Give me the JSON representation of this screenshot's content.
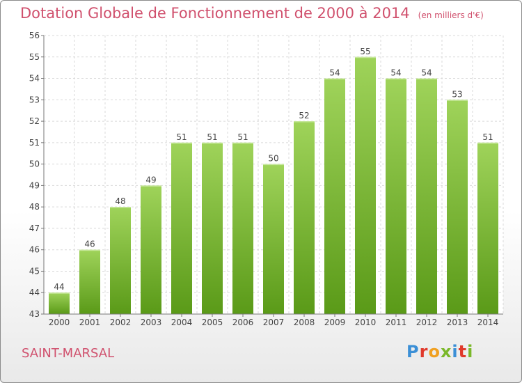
{
  "title": "Dotation Globale de Fonctionnement de 2000 à 2014",
  "unit": "(en milliers d'€)",
  "commune": "SAINT-MARSAL",
  "brand": {
    "letters": [
      "P",
      "r",
      "o",
      "x",
      "i",
      "t",
      "i"
    ],
    "colors": [
      "#3b8fd6",
      "#e0392b",
      "#f0a020",
      "#7ab829",
      "#3b8fd6",
      "#e0392b",
      "#7ab829"
    ]
  },
  "colors": {
    "title": "#d0506d",
    "bar_top": "#9fd35a",
    "bar_bottom": "#5a9a18",
    "grid": "#d9d9d9"
  },
  "chart_data": {
    "type": "bar",
    "title": "Dotation Globale de Fonctionnement de 2000 à 2014",
    "subtitle": "(en milliers d'€)",
    "categories": [
      "2000",
      "2001",
      "2002",
      "2003",
      "2004",
      "2005",
      "2006",
      "2007",
      "2008",
      "2009",
      "2010",
      "2011",
      "2012",
      "2013",
      "2014"
    ],
    "values": [
      44,
      46,
      48,
      49,
      51,
      51,
      51,
      50,
      52,
      54,
      55,
      54,
      54,
      53,
      51
    ],
    "ylim": [
      43,
      56
    ],
    "yticks": [
      43,
      44,
      45,
      46,
      47,
      48,
      49,
      50,
      51,
      52,
      53,
      54,
      55,
      56
    ],
    "grid": true,
    "data_labels": true
  }
}
